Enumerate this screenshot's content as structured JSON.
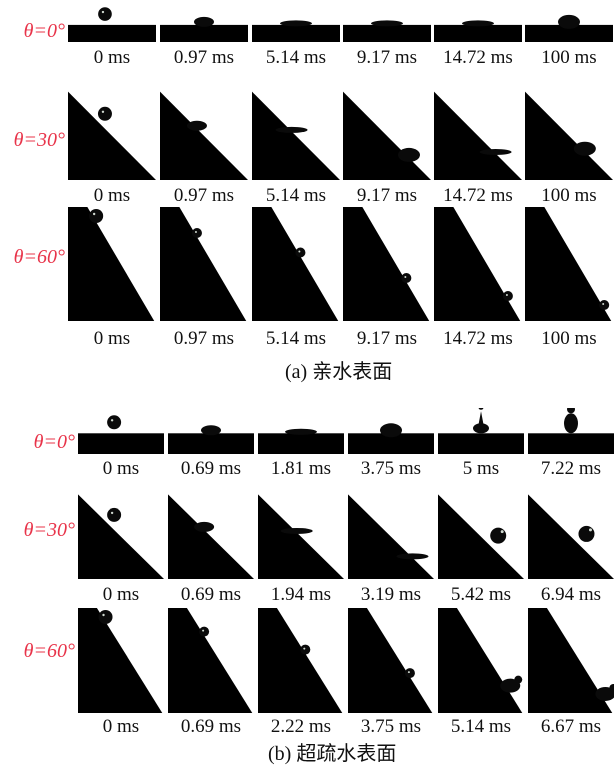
{
  "colors": {
    "angle_label": "#e8344a",
    "substrate": "#000000",
    "droplet": "#0a0a0a",
    "background": "#ffffff"
  },
  "panel_a": {
    "caption": "(a) 亲水表面",
    "rows": [
      {
        "angle_label": "θ=0°",
        "tilt_deg": 0,
        "times": [
          "0 ms",
          "0.97 ms",
          "5.14 ms",
          "9.17 ms",
          "14.72 ms",
          "100 ms"
        ],
        "droplet_shapes": [
          "sphere",
          "flattened",
          "film",
          "film",
          "film",
          "cap"
        ]
      },
      {
        "angle_label": "θ=30°",
        "tilt_deg": 30,
        "times": [
          "0 ms",
          "0.97 ms",
          "5.14 ms",
          "9.17 ms",
          "14.72 ms",
          "100 ms"
        ],
        "droplet_shapes": [
          "sphere",
          "flattened",
          "film",
          "cap",
          "film",
          "cap"
        ]
      },
      {
        "angle_label": "θ=60°",
        "tilt_deg": 60,
        "times": [
          "0 ms",
          "0.97 ms",
          "5.14 ms",
          "9.17 ms",
          "14.72 ms",
          "100 ms"
        ],
        "droplet_shapes": [
          "sphere",
          "small",
          "small",
          "small",
          "small",
          "small"
        ]
      }
    ]
  },
  "panel_b": {
    "caption": "(b) 超疏水表面",
    "rows": [
      {
        "angle_label": "θ=0°",
        "tilt_deg": 0,
        "times": [
          "0 ms",
          "0.69 ms",
          "1.81 ms",
          "3.75 ms",
          "5 ms",
          "7.22 ms"
        ],
        "droplet_shapes": [
          "sphere",
          "flattened",
          "film",
          "cap",
          "jet",
          "jet-tall"
        ]
      },
      {
        "angle_label": "θ=30°",
        "tilt_deg": 30,
        "times": [
          "0 ms",
          "0.69 ms",
          "1.94 ms",
          "3.19 ms",
          "5.42 ms",
          "6.94 ms"
        ],
        "droplet_shapes": [
          "sphere",
          "flattened",
          "film",
          "film",
          "rebound",
          "rebound"
        ]
      },
      {
        "angle_label": "θ=60°",
        "tilt_deg": 60,
        "times": [
          "0 ms",
          "0.69 ms",
          "2.22 ms",
          "3.75 ms",
          "5.14 ms",
          "6.67 ms"
        ],
        "droplet_shapes": [
          "sphere",
          "small",
          "small",
          "small",
          "splash",
          "splash"
        ]
      }
    ]
  }
}
